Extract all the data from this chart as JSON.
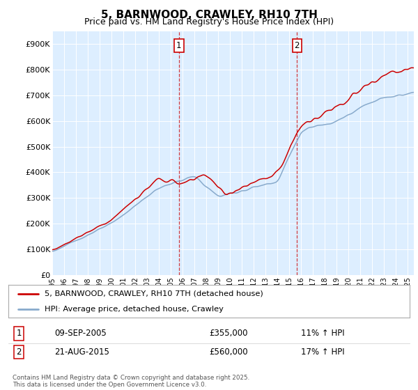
{
  "title": "5, BARNWOOD, CRAWLEY, RH10 7TH",
  "subtitle": "Price paid vs. HM Land Registry's House Price Index (HPI)",
  "ylim": [
    0,
    950000
  ],
  "yticks": [
    0,
    100000,
    200000,
    300000,
    400000,
    500000,
    600000,
    700000,
    800000,
    900000
  ],
  "ytick_labels": [
    "£0",
    "£100K",
    "£200K",
    "£300K",
    "£400K",
    "£500K",
    "£600K",
    "£700K",
    "£800K",
    "£900K"
  ],
  "line1_color": "#cc0000",
  "line2_color": "#88aacc",
  "vline_color": "#cc0000",
  "ann1_x": 2005.69,
  "ann2_x": 2015.64,
  "annotation1": {
    "label": "1",
    "date": "09-SEP-2005",
    "price": "£355,000",
    "hpi": "11% ↑ HPI"
  },
  "annotation2": {
    "label": "2",
    "date": "21-AUG-2015",
    "price": "£560,000",
    "hpi": "17% ↑ HPI"
  },
  "legend1": "5, BARNWOOD, CRAWLEY, RH10 7TH (detached house)",
  "legend2": "HPI: Average price, detached house, Crawley",
  "footer": "Contains HM Land Registry data © Crown copyright and database right 2025.\nThis data is licensed under the Open Government Licence v3.0.",
  "plot_bg_color": "#ddeeff",
  "xmin": 1995,
  "xmax": 2025.5
}
